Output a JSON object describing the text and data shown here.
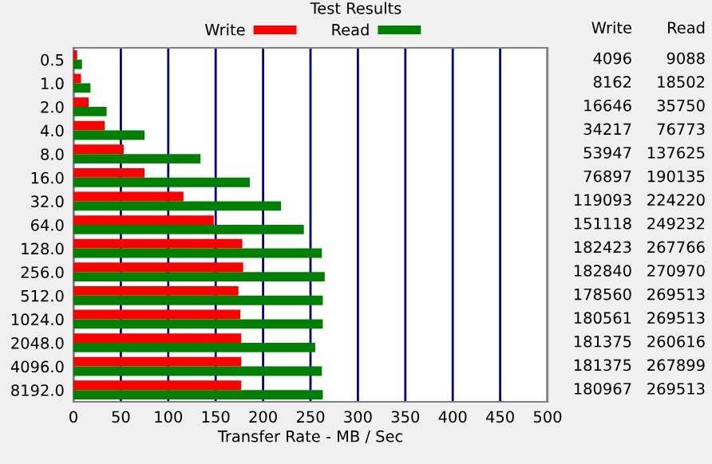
{
  "chart_data": [
    {
      "type": "bar",
      "orientation": "horizontal",
      "title": "Test Results",
      "xlabel": "Transfer Rate - MB / Sec",
      "categories": [
        "0.5",
        "1.0",
        "2.0",
        "4.0",
        "8.0",
        "16.0",
        "32.0",
        "64.0",
        "128.0",
        "256.0",
        "512.0",
        "1024.0",
        "2048.0",
        "4096.0",
        "8192.0"
      ],
      "series": [
        {
          "name": "Write",
          "color": "#ff0000",
          "values": [
            4,
            8,
            16,
            33,
            53,
            75,
            116,
            148,
            178,
            179,
            174,
            176,
            177,
            177,
            177
          ]
        },
        {
          "name": "Read",
          "color": "#008000",
          "values": [
            9,
            18,
            35,
            75,
            134,
            186,
            219,
            243,
            262,
            265,
            263,
            263,
            255,
            262,
            263
          ]
        }
      ],
      "xlim": [
        0,
        500
      ],
      "xticks": [
        0,
        50,
        100,
        150,
        200,
        250,
        300,
        350,
        400,
        450,
        500
      ],
      "grid": "x",
      "legend": "top"
    },
    {
      "type": "other",
      "annotations": [
        "Write",
        "Read",
        "4096",
        "9088",
        "8162",
        "18502",
        "16646",
        "35750",
        "34217",
        "76773",
        "53947",
        "137625",
        "76897",
        "190135",
        "119093",
        "224220",
        "151118",
        "249232",
        "182423",
        "267766",
        "182840",
        "270970",
        "178560",
        "269513",
        "180561",
        "269513",
        "181375",
        "260616",
        "181375",
        "267899",
        "180967",
        "269513"
      ]
    }
  ]
}
